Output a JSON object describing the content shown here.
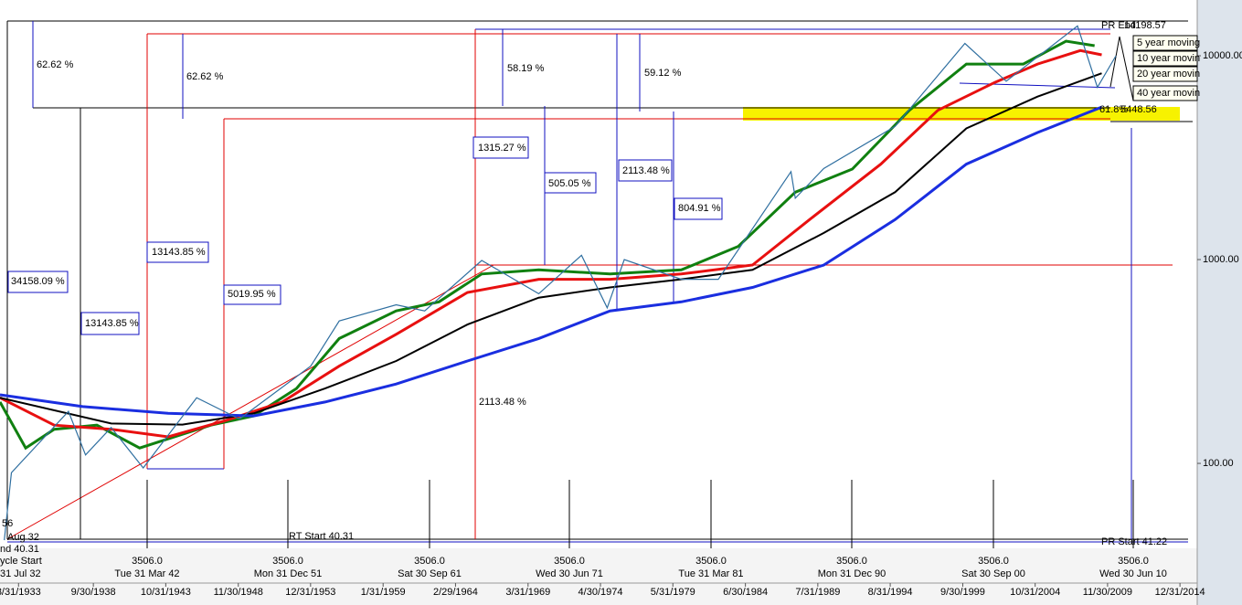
{
  "chart_data": {
    "type": "line",
    "log_y": true,
    "xlim": [
      1932.2,
      2016.2
    ],
    "ylim": [
      38.3,
      18770
    ],
    "yticks": [
      {
        "value": 100,
        "label": "100.00"
      },
      {
        "value": 1000,
        "label": "1000.00"
      },
      {
        "value": 10000,
        "label": "10000.00"
      }
    ],
    "xticks": [
      {
        "value": 1933.5,
        "label": "3/31/1933"
      },
      {
        "value": 1938.75,
        "label": "9/30/1938"
      },
      {
        "value": 1943.83,
        "label": "10/31/1943"
      },
      {
        "value": 1948.92,
        "label": "11/30/1948"
      },
      {
        "value": 1953.99,
        "label": "12/31/1953"
      },
      {
        "value": 1959.08,
        "label": "1/31/1959"
      },
      {
        "value": 1964.16,
        "label": "2/29/1964"
      },
      {
        "value": 1969.25,
        "label": "3/31/1969"
      },
      {
        "value": 1974.33,
        "label": "4/30/1974"
      },
      {
        "value": 1979.41,
        "label": "5/31/1979"
      },
      {
        "value": 1984.5,
        "label": "6/30/1984"
      },
      {
        "value": 1989.58,
        "label": "7/31/1989"
      },
      {
        "value": 1994.66,
        "label": "8/31/1994"
      },
      {
        "value": 1999.75,
        "label": "9/30/1999"
      },
      {
        "value": 2004.83,
        "label": "10/31/2004"
      },
      {
        "value": 2009.91,
        "label": "11/30/2009"
      },
      {
        "value": 2014.99,
        "label": "12/31/2014"
      }
    ],
    "price": {
      "color": "#2f6fa0",
      "x": [
        1932.5,
        1933,
        1937,
        1938.2,
        1940,
        1942.25,
        1946,
        1949,
        1954,
        1956,
        1960,
        1962,
        1966,
        1970,
        1973,
        1974.8,
        1976,
        1980,
        1982.6,
        1987.7,
        1988,
        1990,
        1995,
        1999.9,
        2002.8,
        2007.8,
        2009.2,
        2010.5
      ],
      "values": [
        42,
        90,
        180,
        110,
        150,
        95,
        210,
        165,
        300,
        500,
        600,
        560,
        990,
        680,
        1050,
        580,
        1000,
        800,
        800,
        2700,
        2000,
        2800,
        4500,
        11500,
        7500,
        14000,
        7000,
        10000
      ]
    },
    "series": [
      {
        "name": "5 year moving",
        "color": "#108010",
        "x": [
          1932.2,
          1934,
          1936,
          1939,
          1942,
          1944,
          1947,
          1950,
          1953,
          1956,
          1960,
          1963,
          1966,
          1970,
          1975,
          1980,
          1984,
          1988,
          1992,
          1996,
          2000,
          2004,
          2007,
          2009
        ],
        "values": [
          200,
          119,
          147,
          154,
          119,
          132,
          154,
          171,
          233,
          410,
          560,
          620,
          850,
          890,
          850,
          890,
          1160,
          2140,
          2780,
          5400,
          9100,
          9100,
          11800,
          11200
        ]
      },
      {
        "name": "10 year movin",
        "color": "#e81010",
        "x": [
          1932.2,
          1936,
          1940,
          1944,
          1948,
          1952,
          1956,
          1960,
          1965,
          1970,
          1975,
          1980,
          1985,
          1989,
          1994,
          1998,
          2002,
          2005,
          2008,
          2009.5
        ],
        "values": [
          210,
          154,
          147,
          135,
          162,
          200,
          300,
          430,
          690,
          800,
          800,
          850,
          940,
          1570,
          2940,
          5400,
          7400,
          9100,
          10600,
          10100
        ]
      },
      {
        "name": "20 year movin",
        "color": "#000000",
        "x": [
          1932.2,
          1940,
          1945,
          1950,
          1955,
          1960,
          1965,
          1970,
          1975,
          1980,
          1985,
          1990,
          1995,
          2000,
          2005,
          2009.5
        ],
        "values": [
          210,
          157,
          155,
          176,
          233,
          318,
          480,
          650,
          730,
          800,
          890,
          1350,
          2140,
          4400,
          6300,
          8200
        ]
      },
      {
        "name": "40  year movin",
        "color": "#1a2ee0",
        "x": [
          1932.2,
          1938,
          1944,
          1950,
          1955,
          1960,
          1965,
          1970,
          1975,
          1980,
          1985,
          1990,
          1995,
          2000,
          2005,
          2009.5
        ],
        "values": [
          217,
          190,
          176,
          171,
          200,
          245,
          318,
          410,
          560,
          620,
          730,
          940,
          1570,
          2940,
          4200,
          5600
        ]
      }
    ],
    "annotations": [
      "62.62 %",
      "62.62 %",
      "58.19 %",
      "59.12 %",
      "1315.27 %",
      "505.05 %",
      "2113.48 %",
      "804.91 %",
      "13143.85 %",
      "34158.09 %",
      "5019.95 %",
      "13143.85 %",
      "2113.48 %",
      "RT Start 40.31",
      "PR Start 41.22",
      "61.8%",
      "5448.56",
      "PR End",
      "14198.57",
      "Aug 32",
      "56",
      "nd 40.31",
      "ycle Start",
      "31 Jul 32"
    ],
    "cycle_labels": [
      {
        "value": "3506.0",
        "date": "Tue 31 Mar 42"
      },
      {
        "value": "3506.0",
        "date": "Mon 31 Dec 51"
      },
      {
        "value": "3506.0",
        "date": "Sat 30 Sep 61"
      },
      {
        "value": "3506.0",
        "date": "Wed 30 Jun 71"
      },
      {
        "value": "3506.0",
        "date": "Tue 31 Mar 81"
      },
      {
        "value": "3506.0",
        "date": "Mon 31 Dec 90"
      },
      {
        "value": "3506.0",
        "date": "Sat 30 Sep 00"
      },
      {
        "value": "3506.0",
        "date": "Wed 30 Jun 10"
      }
    ]
  }
}
